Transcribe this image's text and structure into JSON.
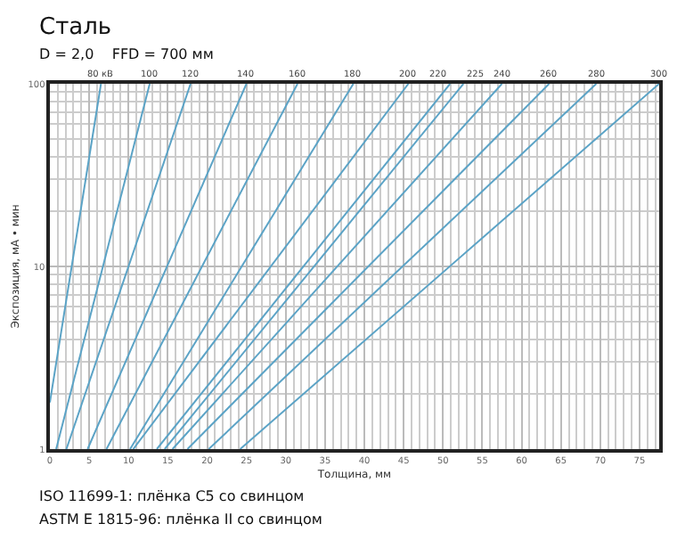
{
  "chart_data": {
    "type": "line",
    "title": "Сталь",
    "subtitle": "D = 2,0    FFD = 700 мм",
    "xlabel": "Толщина, мм",
    "ylabel": "Экспозиция, мА • мин",
    "annotations": [
      "ISO 11699-1: плёнка С5 со свинцом",
      "ASTM E 1815-96: плёнка II со свинцом"
    ],
    "series": [
      {
        "name": "80 кВ",
        "color": "#5ba3c6",
        "x": [
          0,
          6.5
        ],
        "values": [
          1.8,
          100
        ]
      },
      {
        "name": "100",
        "color": "#5ba3c6",
        "x": [
          0.8,
          12.7
        ],
        "values": [
          1,
          100
        ]
      },
      {
        "name": "120",
        "color": "#5ba3c6",
        "x": [
          2.1,
          17.9
        ],
        "values": [
          1,
          100
        ]
      },
      {
        "name": "140",
        "color": "#5ba3c6",
        "x": [
          4.8,
          25
        ],
        "values": [
          1,
          100
        ]
      },
      {
        "name": "160",
        "color": "#5ba3c6",
        "x": [
          7.2,
          31.5
        ],
        "values": [
          1,
          100
        ]
      },
      {
        "name": "180",
        "color": "#5ba3c6",
        "x": [
          10.2,
          38.6
        ],
        "values": [
          1,
          100
        ]
      },
      {
        "name": "200",
        "color": "#5ba3c6",
        "x": [
          10.6,
          45.6
        ],
        "values": [
          1,
          100
        ]
      },
      {
        "name": "220",
        "color": "#5ba3c6",
        "x": [
          13.6,
          50.9
        ],
        "values": [
          1,
          100
        ]
      },
      {
        "name": "225",
        "color": "#5ba3c6",
        "x": [
          14.6,
          52.6
        ],
        "values": [
          1,
          100
        ]
      },
      {
        "name": "240",
        "color": "#5ba3c6",
        "x": [
          15.6,
          57.5
        ],
        "values": [
          1,
          100
        ]
      },
      {
        "name": "260",
        "color": "#5ba3c6",
        "x": [
          17.5,
          63.5
        ],
        "values": [
          1,
          100
        ]
      },
      {
        "name": "280",
        "color": "#5ba3c6",
        "x": [
          20.2,
          69.5
        ],
        "values": [
          1,
          100
        ]
      },
      {
        "name": "300",
        "color": "#5ba3c6",
        "x": [
          24.2,
          77.5
        ],
        "values": [
          1,
          100
        ]
      }
    ],
    "xlim": [
      0,
      77.5
    ],
    "xticks": [
      0,
      5,
      10,
      15,
      20,
      25,
      30,
      35,
      40,
      45,
      50,
      55,
      60,
      65,
      70,
      75
    ],
    "ylim": [
      1,
      100
    ],
    "yticks": [
      1,
      10,
      100
    ],
    "log": "y",
    "grid": true,
    "marker": "none",
    "line_style": "solid"
  }
}
